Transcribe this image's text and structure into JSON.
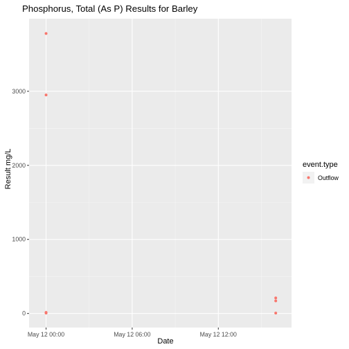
{
  "chart_data": {
    "type": "scatter",
    "title": "Phosphorus, Total (As P) Results for Barley",
    "xlabel": "Date",
    "ylabel": "Result mg/L",
    "x_axis_kind": "datetime",
    "xlim": [
      "2024-05-11T22:49:00",
      "2024-05-12T17:06:00"
    ],
    "ylim": [
      -190,
      3980
    ],
    "x_ticks": [
      {
        "value": "2024-05-12T00:00:00",
        "label": "May 12 00:00"
      },
      {
        "value": "2024-05-12T06:00:00",
        "label": "May 12 06:00"
      },
      {
        "value": "2024-05-12T12:00:00",
        "label": "May 12 12:00"
      }
    ],
    "y_ticks": [
      {
        "value": 0,
        "label": "0"
      },
      {
        "value": 1000,
        "label": "1000"
      },
      {
        "value": 2000,
        "label": "2000"
      },
      {
        "value": 3000,
        "label": "3000"
      }
    ],
    "grid": true,
    "background": "#ebebeb",
    "legend": {
      "title": "event.type",
      "position": "right",
      "entries": [
        "Outflow"
      ]
    },
    "series": [
      {
        "name": "Outflow",
        "color": "#f8766d",
        "points": [
          {
            "x": "2024-05-12T00:00:00",
            "y": 3780
          },
          {
            "x": "2024-05-12T00:00:00",
            "y": 2950
          },
          {
            "x": "2024-05-12T00:00:00",
            "y": 15
          },
          {
            "x": "2024-05-12T00:00:00",
            "y": 5
          },
          {
            "x": "2024-05-12T16:00:00",
            "y": 210
          },
          {
            "x": "2024-05-12T16:00:00",
            "y": 170
          },
          {
            "x": "2024-05-12T16:00:00",
            "y": 5
          }
        ]
      }
    ]
  }
}
